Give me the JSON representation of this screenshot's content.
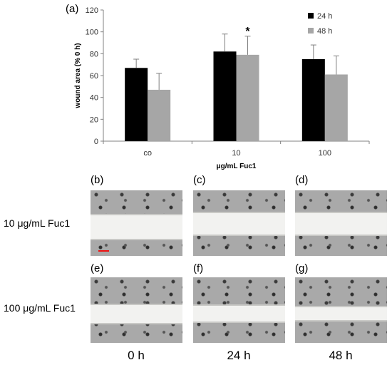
{
  "chart_data": {
    "type": "bar",
    "panel": "(a)",
    "categories": [
      "co",
      "10",
      "100"
    ],
    "series": [
      {
        "name": "24 h",
        "values": [
          67,
          82,
          75
        ],
        "errors": [
          8,
          16,
          13
        ],
        "color": "#000000"
      },
      {
        "name": "48 h",
        "values": [
          47,
          79,
          61
        ],
        "errors": [
          15,
          17,
          17
        ],
        "color": "#a6a6a6"
      }
    ],
    "xlabel": "μg/mL Fuc1",
    "ylabel": "wound area (% 0 h)",
    "ylim": [
      0,
      120
    ],
    "yticks": [
      0,
      20,
      40,
      60,
      80,
      100,
      120
    ],
    "grid": false,
    "legend_position": "top-right",
    "annotations": [
      {
        "category": "10",
        "series": "48 h",
        "text": "*"
      }
    ]
  },
  "images": {
    "panels": [
      "(b)",
      "(c)",
      "(d)",
      "(e)",
      "(f)",
      "(g)"
    ],
    "rows": [
      "10 μg/mL Fuc1",
      "100 μg/mL Fuc1"
    ],
    "columns": [
      "0 h",
      "24 h",
      "48 h"
    ]
  }
}
